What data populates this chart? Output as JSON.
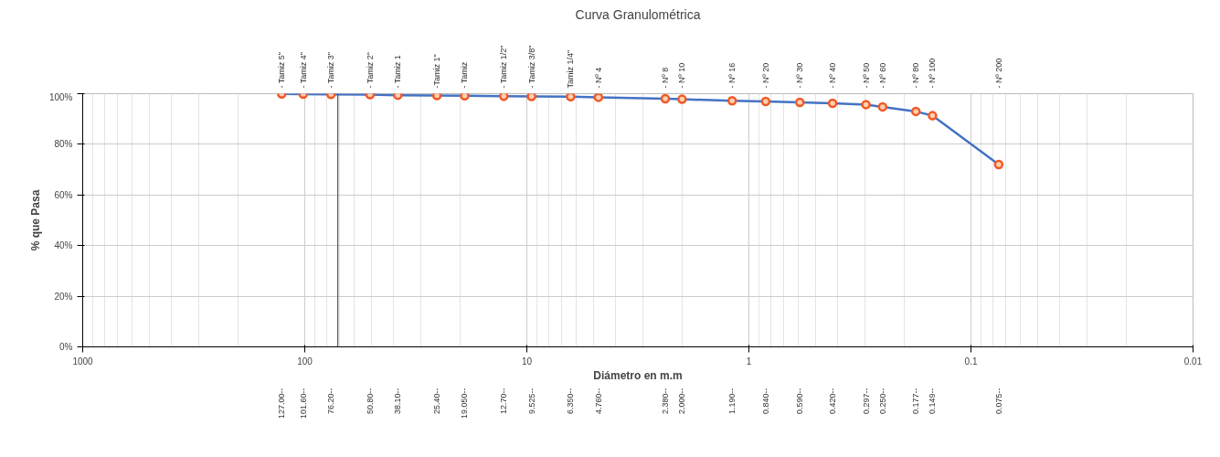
{
  "chart_data": {
    "type": "line",
    "title": "Curva Granulométrica",
    "xlabel": "Diámetro en m.m",
    "ylabel": "% que Pasa",
    "log": "x",
    "grid": true,
    "marker": "circle",
    "line_style": "solid",
    "x": [
      127,
      101.6,
      76.2,
      50.8,
      38.1,
      25.4,
      19.05,
      12.7,
      9.525,
      6.35,
      4.76,
      2.38,
      2.0,
      1.19,
      0.84,
      0.59,
      0.42,
      0.297,
      0.25,
      0.177,
      0.149,
      0.075
    ],
    "series": [
      {
        "color": "#4472c4",
        "values": [
          99.9,
          99.8,
          99.7,
          99.6,
          99.4,
          99.3,
          99.2,
          99.0,
          98.9,
          98.8,
          98.6,
          98.0,
          97.8,
          97.2,
          96.9,
          96.6,
          96.2,
          95.7,
          94.8,
          93.0,
          91.3,
          72.0
        ]
      }
    ],
    "xlim": [
      1000,
      0.01
    ],
    "ylim": [
      0,
      100
    ],
    "yticks": [
      {
        "value": 0,
        "label": "0%"
      },
      {
        "value": 20,
        "label": "20%"
      },
      {
        "value": 40,
        "label": "40%"
      },
      {
        "value": 60,
        "label": "60%"
      },
      {
        "value": 80,
        "label": "80%"
      },
      {
        "value": 100,
        "label": "100%"
      }
    ],
    "xticks": [
      1000,
      100,
      10,
      1,
      0.1,
      0.01
    ],
    "annotations": [
      "- Tamiz 5\"",
      "- Tamiz 4\"",
      "- Tamiz 3\"",
      "- Tamiz 2\"",
      "- Tamiz 1",
      "-Tamiz 1\"",
      "- Tamiz",
      "- Tamiz 1/2\"",
      "- Tamiz 3/8\"",
      "Tamiz 1/4\"",
      "- Nº 4",
      "- Nº 8",
      "- Nº 10",
      "- Nº 16",
      "- Nº 20",
      "- Nº 30",
      "- Nº 40",
      "- Nº 50",
      "- Nº 60",
      "- Nº 80",
      "- Nº 100",
      "- Nº 200",
      "127.00--",
      "101.60--",
      "76.20--",
      "50.80--",
      "38.10--",
      "25.40--",
      "19.050--",
      "12.70--",
      "9.525--",
      "6.350--",
      "4.760--",
      "2.380--",
      "2.000--",
      "1.190--",
      "0.840--",
      "0.590--",
      "0.420--",
      "0.297--",
      "0.250--",
      "0.177--",
      "0.149--",
      "0.075--"
    ],
    "ref_lines": [
      {
        "axis": "x",
        "value": 71,
        "color": "#555555"
      }
    ]
  }
}
